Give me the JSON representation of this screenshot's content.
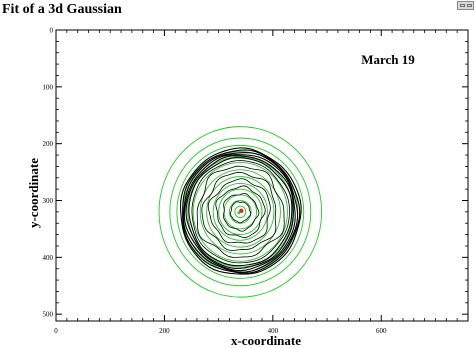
{
  "chart_data": {
    "type": "contour",
    "title": "Fit of a 3d Gaussian",
    "annotation": "March 19",
    "xlabel": "x-coordinate",
    "ylabel": "y-coordinate",
    "xlim": [
      0,
      760
    ],
    "ylim": [
      0,
      512
    ],
    "y_axis_inverted": true,
    "x_ticks": [
      0,
      200,
      400,
      600
    ],
    "y_ticks": [
      0,
      100,
      200,
      300,
      400,
      500
    ],
    "grid": false,
    "center": {
      "x": 340,
      "y": 320
    },
    "fit_contour_radii": [
      10,
      20,
      30,
      40,
      50,
      62,
      74,
      87,
      97,
      106,
      117,
      130,
      150
    ],
    "data_contour_radii": [
      18,
      32,
      44,
      56,
      68,
      80,
      90,
      95,
      99,
      102,
      105,
      108,
      111
    ],
    "colors": {
      "fit_contours": "#22cc22",
      "data_contours": "#000000",
      "center_marker": "#ee2222"
    }
  }
}
